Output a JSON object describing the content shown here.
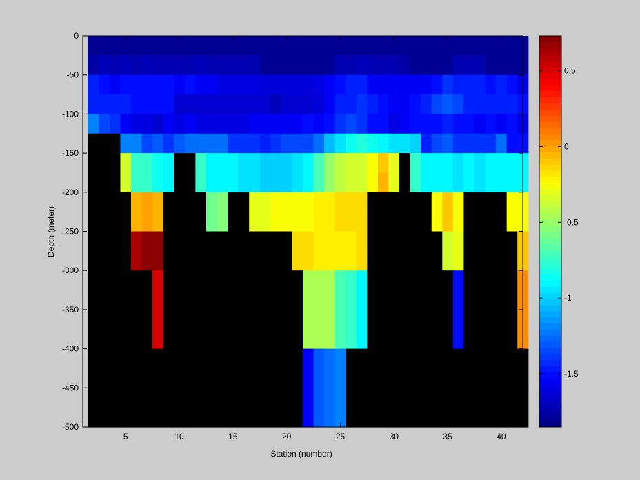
{
  "chart_data": {
    "type": "heatmap",
    "title": "",
    "xlabel": "Station (number)",
    "ylabel": "Depth (meter)",
    "xlim": [
      1,
      42
    ],
    "ylim": [
      -500,
      0
    ],
    "x_ticks": [
      5,
      10,
      15,
      20,
      25,
      30,
      35,
      40
    ],
    "y_ticks": [
      0,
      -50,
      -100,
      -150,
      -200,
      -250,
      -300,
      -350,
      -400,
      -450,
      -500
    ],
    "colorbar": {
      "colormap": "jet",
      "range": [
        -1.85,
        0.73
      ],
      "ticks": [
        0.5,
        0,
        -0.5,
        -1,
        -1.5
      ],
      "no_data_color": "#000000"
    },
    "stations": [
      2,
      3,
      4,
      5,
      6,
      7,
      8,
      9,
      10,
      11,
      12,
      13,
      14,
      15,
      16,
      17,
      18,
      19,
      20,
      21,
      22,
      23,
      24,
      25,
      26,
      27,
      28,
      29,
      30,
      31,
      32,
      33,
      34,
      35,
      36,
      37,
      38,
      39,
      40,
      41,
      42
    ],
    "rows": [
      {
        "depth_top": 0,
        "depth_bottom": -25,
        "values": [
          -1.8,
          -1.8,
          -1.8,
          -1.8,
          -1.8,
          -1.8,
          -1.8,
          -1.8,
          -1.8,
          -1.8,
          -1.8,
          -1.8,
          -1.8,
          -1.8,
          -1.8,
          -1.8,
          -1.8,
          -1.8,
          -1.8,
          -1.8,
          -1.8,
          -1.8,
          -1.8,
          -1.8,
          -1.8,
          -1.8,
          -1.8,
          -1.8,
          -1.8,
          -1.8,
          -1.8,
          -1.8,
          -1.8,
          -1.8,
          -1.8,
          -1.8,
          -1.8,
          -1.8,
          -1.8,
          -1.8,
          -1.8
        ]
      },
      {
        "depth_top": -25,
        "depth_bottom": -50,
        "values": [
          -1.75,
          -1.7,
          -1.72,
          -1.7,
          -1.73,
          -1.7,
          -1.72,
          -1.72,
          -1.72,
          -1.72,
          -1.7,
          -1.72,
          -1.72,
          -1.72,
          -1.72,
          -1.72,
          -1.8,
          -1.8,
          -1.8,
          -1.8,
          -1.8,
          -1.8,
          -1.8,
          -1.72,
          -1.72,
          -1.7,
          -1.72,
          -1.72,
          -1.72,
          -1.75,
          -1.8,
          -1.8,
          -1.8,
          -1.8,
          -1.72,
          -1.72,
          -1.72,
          -1.8,
          -1.8,
          -1.8,
          -1.8
        ]
      },
      {
        "depth_top": -50,
        "depth_bottom": -75,
        "values": [
          -1.45,
          -1.5,
          -1.55,
          -1.5,
          -1.5,
          -1.5,
          -1.5,
          -1.5,
          -1.55,
          -1.5,
          -1.55,
          -1.55,
          -1.6,
          -1.6,
          -1.6,
          -1.6,
          -1.62,
          -1.62,
          -1.62,
          -1.62,
          -1.62,
          -1.6,
          -1.55,
          -1.5,
          -1.45,
          -1.45,
          -1.55,
          -1.55,
          -1.55,
          -1.55,
          -1.55,
          -1.55,
          -1.5,
          -1.4,
          -1.45,
          -1.45,
          -1.45,
          -1.5,
          -1.45,
          -1.5,
          -1.6
        ]
      },
      {
        "depth_top": -75,
        "depth_bottom": -100,
        "values": [
          -1.45,
          -1.45,
          -1.45,
          -1.45,
          -1.5,
          -1.5,
          -1.5,
          -1.5,
          -1.65,
          -1.65,
          -1.65,
          -1.65,
          -1.65,
          -1.65,
          -1.65,
          -1.65,
          -1.65,
          -1.7,
          -1.65,
          -1.65,
          -1.65,
          -1.62,
          -1.55,
          -1.45,
          -1.45,
          -1.4,
          -1.45,
          -1.5,
          -1.55,
          -1.55,
          -1.5,
          -1.45,
          -1.35,
          -1.3,
          -1.35,
          -1.45,
          -1.45,
          -1.45,
          -1.45,
          -1.45,
          -1.5
        ]
      },
      {
        "depth_top": -100,
        "depth_bottom": -125,
        "values": [
          -1.2,
          -1.35,
          -1.4,
          -1.55,
          -1.6,
          -1.6,
          -1.65,
          -1.55,
          -1.6,
          -1.55,
          -1.6,
          -1.6,
          -1.6,
          -1.6,
          -1.6,
          -1.55,
          -1.55,
          -1.55,
          -1.55,
          -1.55,
          -1.5,
          -1.55,
          -1.5,
          -1.4,
          -1.35,
          -1.4,
          -1.5,
          -1.5,
          -1.6,
          -1.55,
          -1.5,
          -1.5,
          -1.5,
          -1.45,
          -1.5,
          -1.5,
          -1.55,
          -1.5,
          -1.55,
          -1.5,
          -1.6
        ]
      },
      {
        "depth_top": -125,
        "depth_bottom": -150,
        "values": [
          null,
          null,
          null,
          -1.2,
          -1.2,
          -1.35,
          -1.3,
          -1.4,
          -1.3,
          -1.25,
          -1.25,
          -1.25,
          -1.25,
          -1.4,
          -1.4,
          -1.4,
          -1.45,
          -1.4,
          -1.35,
          -1.35,
          -1.35,
          -1.25,
          -1.05,
          -0.95,
          -0.85,
          -0.8,
          -0.85,
          -0.9,
          -0.95,
          -0.95,
          -1.0,
          -1.45,
          -1.35,
          -1.3,
          -1.4,
          -1.4,
          -1.4,
          -1.4,
          -1.25,
          -1.5,
          -1.5
        ]
      },
      {
        "depth_top": -150,
        "depth_bottom": -175,
        "values": [
          null,
          null,
          null,
          -0.35,
          -0.75,
          -0.75,
          -0.85,
          -0.9,
          null,
          null,
          -0.75,
          -0.9,
          -0.9,
          -0.9,
          -0.95,
          -0.95,
          -1.0,
          -1.0,
          -1.0,
          -0.95,
          -0.9,
          -0.7,
          -0.5,
          -0.4,
          -0.35,
          -0.35,
          -0.25,
          -0.1,
          -0.3,
          null,
          -0.75,
          -0.9,
          -0.9,
          -0.9,
          -0.95,
          -0.9,
          -0.95,
          -0.9,
          -0.9,
          -0.9,
          -0.9
        ]
      },
      {
        "depth_top": -175,
        "depth_bottom": -200,
        "values": [
          null,
          null,
          null,
          -0.35,
          -0.75,
          -0.75,
          -0.85,
          -0.9,
          null,
          null,
          -0.75,
          -0.9,
          -0.9,
          -0.9,
          -0.95,
          -0.95,
          -1.0,
          -1.0,
          -1.0,
          -0.95,
          -0.9,
          -0.7,
          -0.5,
          -0.4,
          -0.35,
          -0.35,
          -0.25,
          -0.05,
          -0.3,
          null,
          -0.75,
          -0.9,
          -0.9,
          -0.9,
          -0.95,
          -0.9,
          -0.95,
          -0.9,
          -0.9,
          -0.9,
          -0.9
        ]
      },
      {
        "depth_top": -200,
        "depth_bottom": -225,
        "values": [
          null,
          null,
          null,
          null,
          -0.05,
          0.0,
          -0.05,
          null,
          null,
          null,
          null,
          -0.6,
          -0.55,
          null,
          null,
          -0.3,
          -0.3,
          -0.25,
          -0.25,
          -0.25,
          -0.25,
          -0.2,
          -0.2,
          -0.15,
          -0.15,
          -0.15,
          null,
          null,
          null,
          null,
          null,
          null,
          -0.25,
          -0.1,
          -0.25,
          null,
          null,
          null,
          null,
          -0.25,
          -0.25
        ]
      },
      {
        "depth_top": -225,
        "depth_bottom": -250,
        "values": [
          null,
          null,
          null,
          null,
          -0.05,
          0.0,
          -0.05,
          null,
          null,
          null,
          null,
          -0.6,
          -0.55,
          null,
          null,
          -0.3,
          -0.3,
          -0.25,
          -0.25,
          -0.25,
          -0.25,
          -0.2,
          -0.2,
          -0.15,
          -0.15,
          -0.15,
          null,
          null,
          null,
          null,
          null,
          null,
          -0.25,
          -0.1,
          -0.25,
          null,
          null,
          null,
          null,
          -0.25,
          -0.25
        ]
      },
      {
        "depth_top": -250,
        "depth_bottom": -275,
        "values": [
          null,
          null,
          null,
          null,
          0.62,
          0.7,
          0.7,
          null,
          null,
          null,
          null,
          null,
          null,
          null,
          null,
          null,
          null,
          null,
          null,
          -0.15,
          -0.15,
          -0.2,
          -0.2,
          -0.2,
          -0.2,
          -0.15,
          null,
          null,
          null,
          null,
          null,
          null,
          null,
          -0.35,
          -0.3,
          null,
          null,
          null,
          null,
          null,
          -0.1
        ]
      },
      {
        "depth_top": -275,
        "depth_bottom": -300,
        "values": [
          null,
          null,
          null,
          null,
          0.62,
          0.7,
          0.7,
          null,
          null,
          null,
          null,
          null,
          null,
          null,
          null,
          null,
          null,
          null,
          null,
          -0.15,
          -0.15,
          -0.2,
          -0.2,
          -0.2,
          -0.2,
          -0.15,
          null,
          null,
          null,
          null,
          null,
          null,
          null,
          -0.35,
          -0.3,
          null,
          null,
          null,
          null,
          null,
          -0.1
        ]
      },
      {
        "depth_top": -300,
        "depth_bottom": -325,
        "values": [
          null,
          null,
          null,
          null,
          null,
          null,
          0.5,
          null,
          null,
          null,
          null,
          null,
          null,
          null,
          null,
          null,
          null,
          null,
          null,
          null,
          -0.45,
          -0.45,
          -0.45,
          -0.7,
          -0.75,
          -0.9,
          null,
          null,
          null,
          null,
          null,
          null,
          null,
          null,
          -1.5,
          null,
          null,
          null,
          null,
          null,
          0.05
        ]
      },
      {
        "depth_top": -325,
        "depth_bottom": -350,
        "values": [
          null,
          null,
          null,
          null,
          null,
          null,
          0.5,
          null,
          null,
          null,
          null,
          null,
          null,
          null,
          null,
          null,
          null,
          null,
          null,
          null,
          -0.45,
          -0.45,
          -0.45,
          -0.7,
          -0.75,
          -0.9,
          null,
          null,
          null,
          null,
          null,
          null,
          null,
          null,
          -1.5,
          null,
          null,
          null,
          null,
          null,
          0.05
        ]
      },
      {
        "depth_top": -350,
        "depth_bottom": -375,
        "values": [
          null,
          null,
          null,
          null,
          null,
          null,
          0.5,
          null,
          null,
          null,
          null,
          null,
          null,
          null,
          null,
          null,
          null,
          null,
          null,
          null,
          -0.45,
          -0.45,
          -0.45,
          -0.7,
          -0.75,
          -0.9,
          null,
          null,
          null,
          null,
          null,
          null,
          null,
          null,
          -1.5,
          null,
          null,
          null,
          null,
          null,
          0.05
        ]
      },
      {
        "depth_top": -375,
        "depth_bottom": -400,
        "values": [
          null,
          null,
          null,
          null,
          null,
          null,
          0.5,
          null,
          null,
          null,
          null,
          null,
          null,
          null,
          null,
          null,
          null,
          null,
          null,
          null,
          -0.45,
          -0.45,
          -0.45,
          -0.7,
          -0.75,
          -0.9,
          null,
          null,
          null,
          null,
          null,
          null,
          null,
          null,
          -1.5,
          null,
          null,
          null,
          null,
          null,
          0.05
        ]
      },
      {
        "depth_top": -400,
        "depth_bottom": -425,
        "values": [
          null,
          null,
          null,
          null,
          null,
          null,
          null,
          null,
          null,
          null,
          null,
          null,
          null,
          null,
          null,
          null,
          null,
          null,
          null,
          null,
          -1.55,
          -1.3,
          -1.25,
          -1.2,
          null,
          null,
          null,
          null,
          null,
          null,
          null,
          null,
          null,
          null,
          null,
          null,
          null,
          null,
          null,
          null,
          null
        ]
      },
      {
        "depth_top": -425,
        "depth_bottom": -450,
        "values": [
          null,
          null,
          null,
          null,
          null,
          null,
          null,
          null,
          null,
          null,
          null,
          null,
          null,
          null,
          null,
          null,
          null,
          null,
          null,
          null,
          -1.55,
          -1.3,
          -1.25,
          -1.2,
          null,
          null,
          null,
          null,
          null,
          null,
          null,
          null,
          null,
          null,
          null,
          null,
          null,
          null,
          null,
          null,
          null
        ]
      },
      {
        "depth_top": -450,
        "depth_bottom": -475,
        "values": [
          null,
          null,
          null,
          null,
          null,
          null,
          null,
          null,
          null,
          null,
          null,
          null,
          null,
          null,
          null,
          null,
          null,
          null,
          null,
          null,
          -1.55,
          -1.3,
          -1.25,
          -1.2,
          null,
          null,
          null,
          null,
          null,
          null,
          null,
          null,
          null,
          null,
          null,
          null,
          null,
          null,
          null,
          null,
          null
        ]
      },
      {
        "depth_top": -475,
        "depth_bottom": -500,
        "values": [
          null,
          null,
          null,
          null,
          null,
          null,
          null,
          null,
          null,
          null,
          null,
          null,
          null,
          null,
          null,
          null,
          null,
          null,
          null,
          null,
          -1.55,
          -1.3,
          -1.25,
          -1.2,
          null,
          null,
          null,
          null,
          null,
          null,
          null,
          null,
          null,
          null,
          null,
          null,
          null,
          null,
          null,
          null,
          null
        ]
      }
    ]
  }
}
